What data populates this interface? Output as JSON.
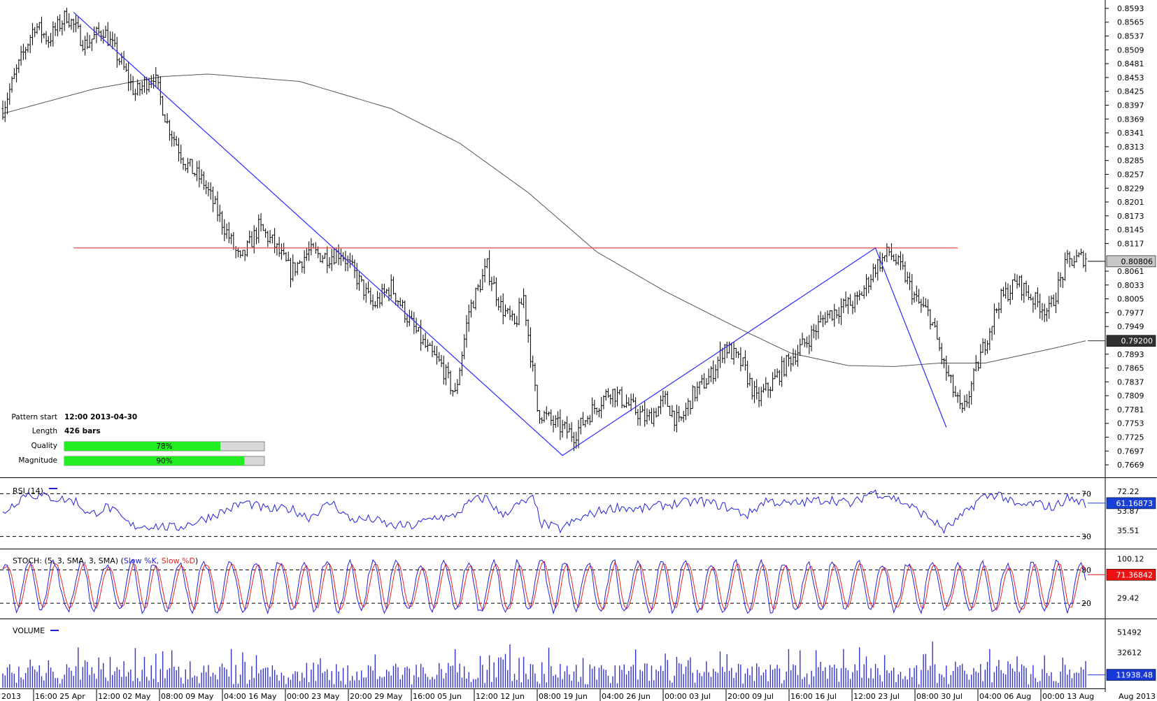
{
  "colors": {
    "candle": "#000000",
    "ma": "#555555",
    "pattern_line": "#2a2aff",
    "resistance_line": "#ff4a4a",
    "rsi": "#2222dd",
    "stoch_k": "#2222dd",
    "stoch_d": "#ee2222",
    "volume": "#3333cc",
    "quality_fill": "#22ee22",
    "price_badge": "#c8c8c8",
    "ma_badge": "#303030",
    "rsi_badge": "#1840d8",
    "stoch_badge": "#ee1111",
    "vol_badge": "#1838d8"
  },
  "info": {
    "pattern_start_label": "Pattern start",
    "pattern_start_value": "12:00 2013-04-30",
    "length_label": "Length",
    "length_value": "426 bars",
    "quality_label": "Quality",
    "quality_value": "78%",
    "quality_pct": 78,
    "magnitude_label": "Magnitude",
    "magnitude_value": "90%",
    "magnitude_pct": 90
  },
  "chart_data": {
    "type": "candlestick",
    "price_axis": {
      "ylim": [
        0.7655,
        0.86
      ],
      "ticks": [
        "0.8593",
        "0.8565",
        "0.8537",
        "0.8509",
        "0.8481",
        "0.8453",
        "0.8425",
        "0.8397",
        "0.8369",
        "0.8341",
        "0.8313",
        "0.8285",
        "0.8257",
        "0.8229",
        "0.8201",
        "0.8173",
        "0.8145",
        "0.8117",
        "0.8061",
        "0.8033",
        "0.8005",
        "0.7977",
        "0.7949",
        "0.7893",
        "0.7865",
        "0.7837",
        "0.7809",
        "0.7781",
        "0.7753",
        "0.7725",
        "0.7697",
        "0.7669"
      ]
    },
    "x_ticks": [
      "2013",
      "16:00 25 Apr",
      "12:00 02 May",
      "08:00 09 May",
      "04:00 16 May",
      "00:00 23 May",
      "20:00 29 May",
      "16:00 05 Jun",
      "12:00 12 Jun",
      "08:00 19 Jun",
      "04:00 26 Jun",
      "00:00 03 Jul",
      "20:00 09 Jul",
      "16:00 16 Jul",
      "12:00 23 Jul",
      "08:00 30 Jul",
      "04:00 06 Aug",
      "00:00 13 Aug",
      "Aug 2013"
    ],
    "price_badge": "0.80806",
    "price_badge_value": 0.8081,
    "ma_badge": "0.79200",
    "ma_badge_value": 0.792,
    "resistance": 0.8108,
    "price_anchors": [
      [
        0,
        0.839
      ],
      [
        8,
        0.849
      ],
      [
        14,
        0.856
      ],
      [
        20,
        0.853
      ],
      [
        28,
        0.858
      ],
      [
        36,
        0.852
      ],
      [
        44,
        0.855
      ],
      [
        52,
        0.848
      ],
      [
        58,
        0.842
      ],
      [
        66,
        0.846
      ],
      [
        72,
        0.836
      ],
      [
        80,
        0.828
      ],
      [
        88,
        0.824
      ],
      [
        96,
        0.816
      ],
      [
        104,
        0.808
      ],
      [
        112,
        0.815
      ],
      [
        118,
        0.812
      ],
      [
        126,
        0.806
      ],
      [
        134,
        0.81
      ],
      [
        142,
        0.809
      ],
      [
        148,
        0.81
      ],
      [
        156,
        0.804
      ],
      [
        162,
        0.799
      ],
      [
        170,
        0.803
      ],
      [
        178,
        0.796
      ],
      [
        186,
        0.79
      ],
      [
        192,
        0.787
      ],
      [
        198,
        0.781
      ],
      [
        204,
        0.798
      ],
      [
        212,
        0.807
      ],
      [
        218,
        0.799
      ],
      [
        224,
        0.795
      ],
      [
        228,
        0.801
      ],
      [
        234,
        0.778
      ],
      [
        242,
        0.775
      ],
      [
        250,
        0.773
      ],
      [
        258,
        0.778
      ],
      [
        266,
        0.782
      ],
      [
        274,
        0.779
      ],
      [
        282,
        0.776
      ],
      [
        290,
        0.78
      ],
      [
        296,
        0.775
      ],
      [
        302,
        0.781
      ],
      [
        310,
        0.785
      ],
      [
        316,
        0.791
      ],
      [
        324,
        0.787
      ],
      [
        330,
        0.78
      ],
      [
        336,
        0.783
      ],
      [
        344,
        0.788
      ],
      [
        352,
        0.792
      ],
      [
        360,
        0.797
      ],
      [
        368,
        0.799
      ],
      [
        374,
        0.8
      ],
      [
        382,
        0.807
      ],
      [
        388,
        0.81
      ],
      [
        394,
        0.806
      ],
      [
        400,
        0.8
      ],
      [
        406,
        0.797
      ],
      [
        412,
        0.787
      ],
      [
        420,
        0.777
      ],
      [
        428,
        0.789
      ],
      [
        436,
        0.8
      ],
      [
        444,
        0.804
      ],
      [
        452,
        0.8
      ],
      [
        458,
        0.798
      ],
      [
        466,
        0.808
      ],
      [
        474,
        0.809
      ]
    ],
    "ma_anchors": [
      [
        0,
        0.838
      ],
      [
        40,
        0.843
      ],
      [
        70,
        0.8455
      ],
      [
        90,
        0.846
      ],
      [
        130,
        0.8445
      ],
      [
        170,
        0.839
      ],
      [
        200,
        0.832
      ],
      [
        230,
        0.822
      ],
      [
        260,
        0.81
      ],
      [
        290,
        0.802
      ],
      [
        320,
        0.795
      ],
      [
        345,
        0.7895
      ],
      [
        370,
        0.787
      ],
      [
        390,
        0.7868
      ],
      [
        410,
        0.7875
      ],
      [
        430,
        0.7875
      ],
      [
        460,
        0.7905
      ],
      [
        474,
        0.792
      ]
    ],
    "pattern_points": [
      [
        31,
        0.8585
      ],
      [
        245,
        0.7688
      ],
      [
        382,
        0.8108
      ],
      [
        413,
        0.7745
      ]
    ],
    "rsi": {
      "label": "RSI (14)",
      "ylim": [
        20,
        82
      ],
      "levels": [
        70,
        30
      ],
      "level_labels": [
        "70",
        "30"
      ],
      "axis_ticks": [
        "72.22",
        "53.87",
        "35.51"
      ],
      "badge": "61.16873",
      "badge_value": 61.17,
      "anchors": [
        [
          0,
          52
        ],
        [
          10,
          70
        ],
        [
          22,
          66
        ],
        [
          32,
          63
        ],
        [
          38,
          50
        ],
        [
          46,
          58
        ],
        [
          56,
          40
        ],
        [
          66,
          40
        ],
        [
          76,
          38
        ],
        [
          86,
          45
        ],
        [
          96,
          53
        ],
        [
          106,
          62
        ],
        [
          116,
          55
        ],
        [
          126,
          56
        ],
        [
          134,
          48
        ],
        [
          144,
          62
        ],
        [
          152,
          46
        ],
        [
          162,
          46
        ],
        [
          170,
          40
        ],
        [
          180,
          40
        ],
        [
          190,
          49
        ],
        [
          196,
          47
        ],
        [
          206,
          64
        ],
        [
          212,
          66
        ],
        [
          218,
          50
        ],
        [
          226,
          60
        ],
        [
          232,
          65
        ],
        [
          236,
          42
        ],
        [
          244,
          37
        ],
        [
          252,
          46
        ],
        [
          260,
          53
        ],
        [
          270,
          58
        ],
        [
          278,
          55
        ],
        [
          288,
          59
        ],
        [
          296,
          61
        ],
        [
          306,
          63
        ],
        [
          316,
          58
        ],
        [
          326,
          50
        ],
        [
          334,
          64
        ],
        [
          344,
          60
        ],
        [
          354,
          63
        ],
        [
          362,
          65
        ],
        [
          372,
          60
        ],
        [
          380,
          72
        ],
        [
          388,
          68
        ],
        [
          396,
          60
        ],
        [
          406,
          47
        ],
        [
          412,
          36
        ],
        [
          420,
          49
        ],
        [
          428,
          66
        ],
        [
          436,
          70
        ],
        [
          444,
          58
        ],
        [
          452,
          61
        ],
        [
          460,
          57
        ],
        [
          466,
          66
        ],
        [
          474,
          61
        ]
      ]
    },
    "stoch": {
      "label": "STOCH: (5, 3, SMA, 3, SMA)",
      "k_label": "Slow %K,",
      "d_label": "Slow %D",
      "ylim": [
        -5,
        112
      ],
      "levels": [
        80,
        20
      ],
      "level_labels": [
        "80",
        "20"
      ],
      "axis_ticks": [
        "100.12",
        "29.42"
      ],
      "badge": "71.36842",
      "badge_value": 71.37
    },
    "volume": {
      "label": "VOLUME",
      "ylim": [
        0,
        57000
      ],
      "axis_ticks": [
        "51492",
        "32612"
      ],
      "badge": "11938.48",
      "badge_value": 11938
    }
  }
}
